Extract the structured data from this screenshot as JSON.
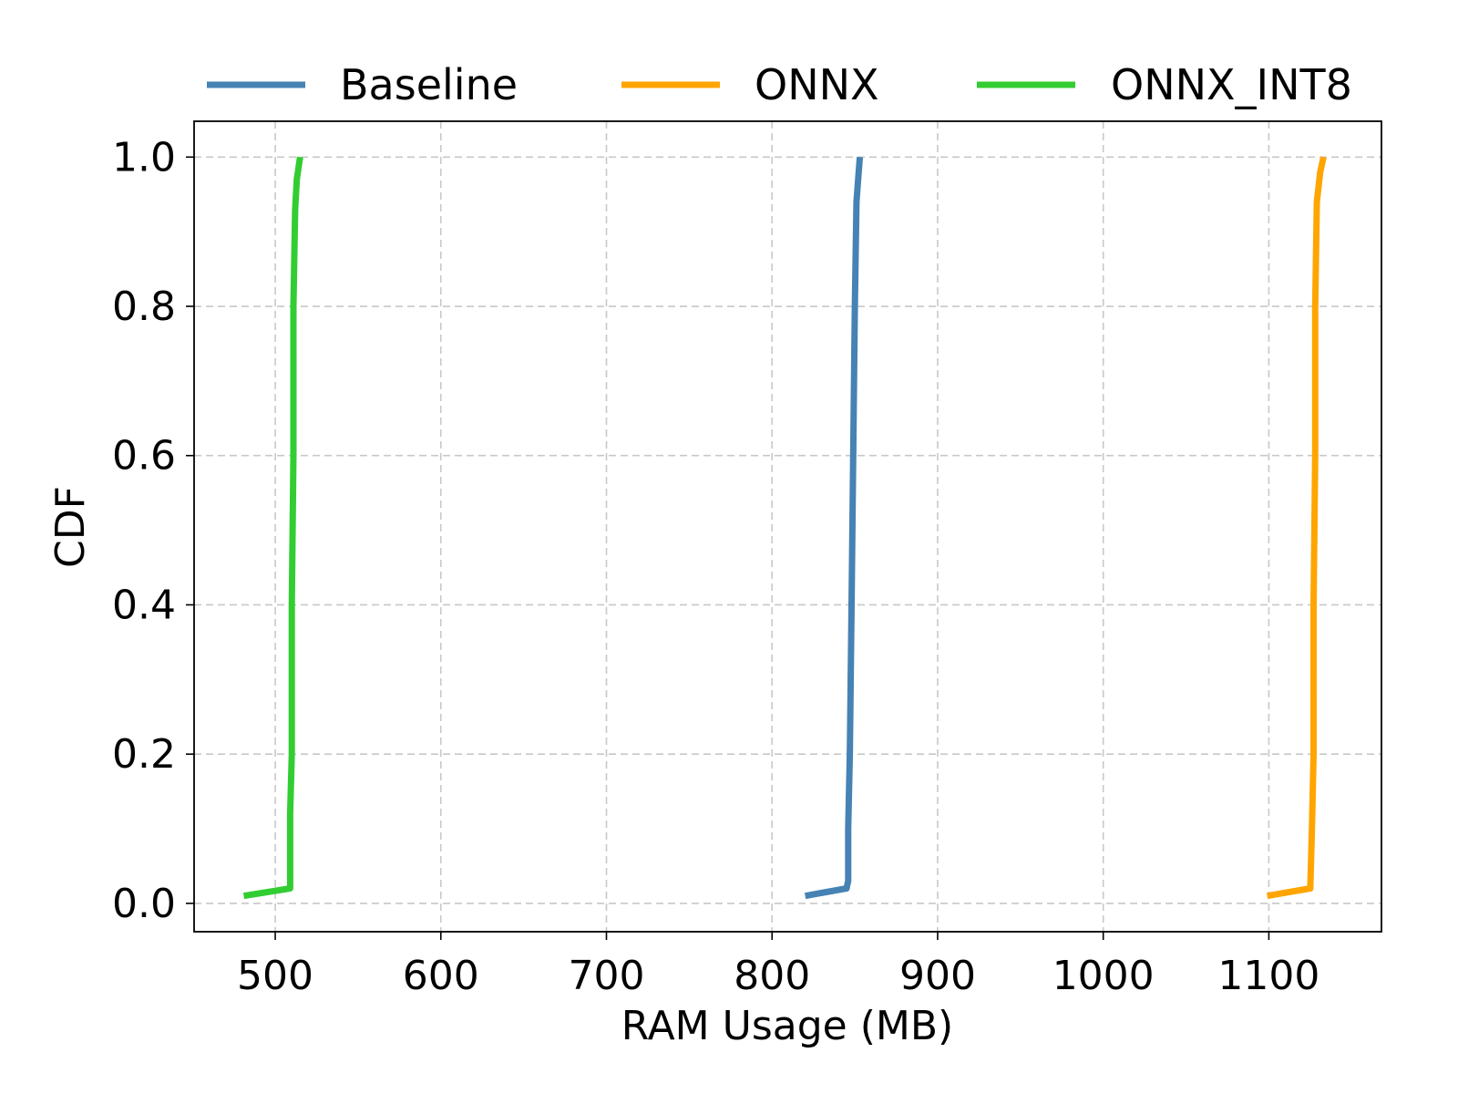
{
  "chart_data": {
    "type": "line",
    "title": "",
    "xlabel": "RAM Usage (MB)",
    "ylabel": "CDF",
    "xlim": [
      451,
      1168
    ],
    "ylim": [
      -0.038,
      1.048
    ],
    "x_ticks": [
      500,
      600,
      700,
      800,
      900,
      1000,
      1100
    ],
    "y_ticks": [
      0.0,
      0.2,
      0.4,
      0.6,
      0.8,
      1.0
    ],
    "x_tick_labels": [
      "500",
      "600",
      "700",
      "800",
      "900",
      "1000",
      "1100"
    ],
    "y_tick_labels": [
      "0.0",
      "0.2",
      "0.4",
      "0.6",
      "0.8",
      "1.0"
    ],
    "grid": true,
    "legend_position": "top",
    "series": [
      {
        "name": "Baseline",
        "color": "#4682b4",
        "points": [
          [
            820,
            0.01
          ],
          [
            845,
            0.02
          ],
          [
            846,
            0.03
          ],
          [
            846,
            0.1
          ],
          [
            847,
            0.2
          ],
          [
            848,
            0.4
          ],
          [
            849,
            0.6
          ],
          [
            850,
            0.8
          ],
          [
            851,
            0.94
          ],
          [
            852,
            0.97
          ],
          [
            853,
            1.0
          ]
        ]
      },
      {
        "name": "ONNX",
        "color": "#ffa500",
        "points": [
          [
            1099,
            0.01
          ],
          [
            1125,
            0.02
          ],
          [
            1126,
            0.1
          ],
          [
            1127,
            0.2
          ],
          [
            1127,
            0.4
          ],
          [
            1128,
            0.6
          ],
          [
            1128,
            0.8
          ],
          [
            1129,
            0.94
          ],
          [
            1131,
            0.98
          ],
          [
            1133,
            1.0
          ]
        ]
      },
      {
        "name": "ONNX_INT8",
        "color": "#32cd32",
        "points": [
          [
            481,
            0.01
          ],
          [
            509,
            0.02
          ],
          [
            509,
            0.12
          ],
          [
            510,
            0.2
          ],
          [
            510,
            0.4
          ],
          [
            511,
            0.6
          ],
          [
            511,
            0.8
          ],
          [
            512,
            0.93
          ],
          [
            513,
            0.97
          ],
          [
            515,
            1.0
          ]
        ]
      }
    ]
  }
}
